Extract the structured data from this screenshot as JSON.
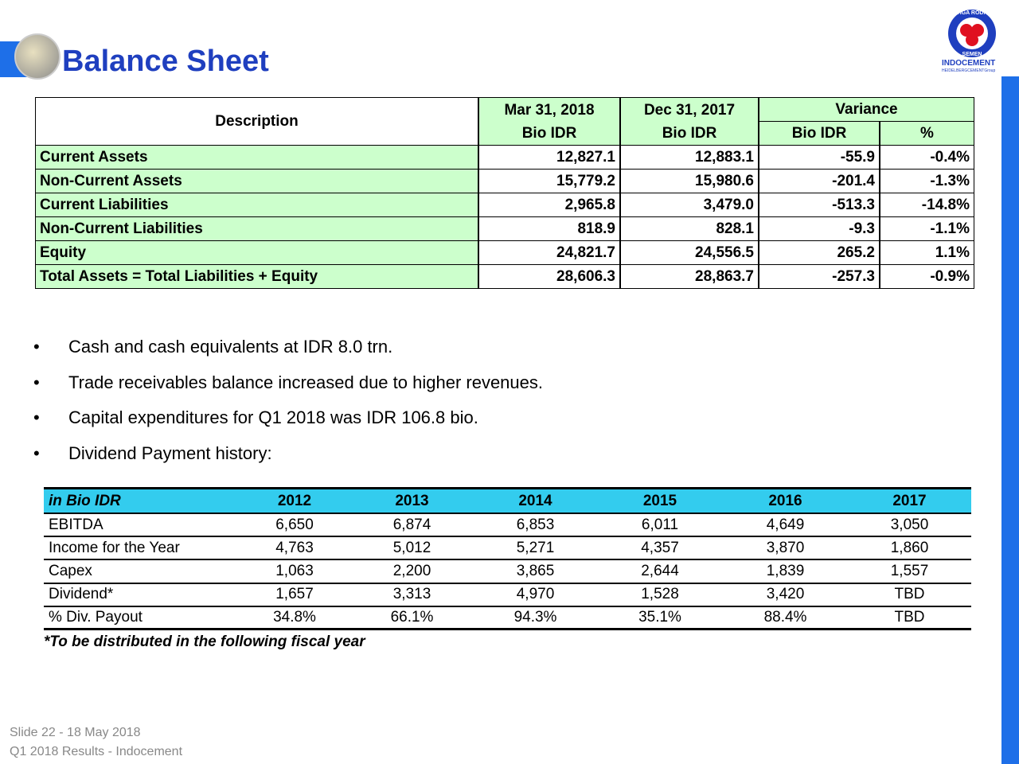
{
  "header": {
    "title": "Balance Sheet",
    "logo_ring_top": "TIGA RODA",
    "logo_ring_bottom": "SEMEN",
    "company": "INDOCEMENT",
    "group": "HEIDELBERGCEMENTGroup"
  },
  "balance_sheet": {
    "description": "Description",
    "col1": [
      "Mar 31, 2018",
      "Bio IDR"
    ],
    "col2": [
      "Dec 31, 2017",
      "Bio IDR"
    ],
    "variance": "Variance",
    "variance_cols": [
      "Bio IDR",
      "%"
    ],
    "rows": [
      [
        "Current Assets",
        "12,827.1",
        "12,883.1",
        "-55.9",
        "-0.4%"
      ],
      [
        "Non-Current Assets",
        "15,779.2",
        "15,980.6",
        "-201.4",
        "-1.3%"
      ],
      [
        "Current Liabilities",
        "2,965.8",
        "3,479.0",
        "-513.3",
        "-14.8%"
      ],
      [
        "Non-Current Liabilities",
        "818.9",
        "828.1",
        "-9.3",
        "-1.1%"
      ],
      [
        "Equity",
        "24,821.7",
        "24,556.5",
        "265.2",
        "1.1%"
      ],
      [
        "Total Assets = Total Liabilities + Equity",
        "28,606.3",
        "28,863.7",
        "-257.3",
        "-0.9%"
      ]
    ]
  },
  "bullets": [
    "Cash and cash equivalents at IDR 8.0 trn.",
    "Trade receivables balance increased due to higher revenues.",
    "Capital expenditures for Q1 2018 was IDR 106.8 bio.",
    "Dividend Payment history:"
  ],
  "dividend_table": {
    "columns": [
      "in Bio IDR",
      "2012",
      "2013",
      "2014",
      "2015",
      "2016",
      "2017"
    ],
    "rows": [
      [
        "EBITDA",
        "6,650",
        "6,874",
        "6,853",
        "6,011",
        "4,649",
        "3,050"
      ],
      [
        "Income for the Year",
        "4,763",
        "5,012",
        "5,271",
        "4,357",
        "3,870",
        "1,860"
      ],
      [
        "Capex",
        "1,063",
        "2,200",
        "3,865",
        "2,644",
        "1,839",
        "1,557"
      ],
      [
        "Dividend*",
        "1,657",
        "3,313",
        "4,970",
        "1,528",
        "3,420",
        "TBD"
      ],
      [
        "% Div. Payout",
        "34.8%",
        "66.1%",
        "94.3%",
        "35.1%",
        "88.4%",
        "TBD"
      ]
    ],
    "footnote": "*To be distributed in the following fiscal year"
  },
  "footer": {
    "line1": "Slide 22 - 18 May 2018",
    "line2": "Q1 2018 Results - Indocement"
  }
}
